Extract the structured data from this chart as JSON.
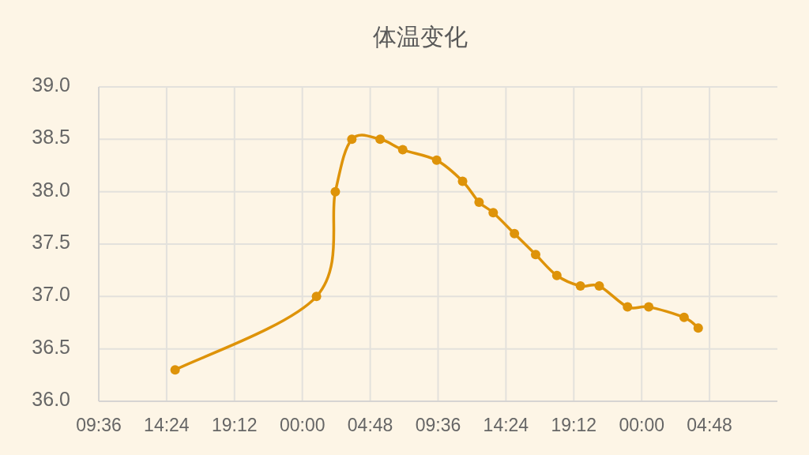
{
  "chart_data": {
    "type": "line",
    "title": "体温变化",
    "x": [
      "--01-01T15:00",
      "--01-02T01:00",
      "--01-02T02:20",
      "--01-02T03:30",
      "--01-02T05:30",
      "--01-02T07:06",
      "--01-02T09:30",
      "--01-02T11:20",
      "--01-02T12:30",
      "--01-02T13:30",
      "--01-02T15:00",
      "--01-02T16:30",
      "--01-02T18:00",
      "--01-02T19:40",
      "--01-02T21:00",
      "--01-02T23:00",
      "--01-03T00:30",
      "--01-03T03:00",
      "--01-03T04:00"
    ],
    "series": [
      {
        "color": "#de9309",
        "values": [
          36.3,
          37.0,
          38.0,
          38.5,
          38.5,
          38.4,
          38.3,
          38.1,
          37.9,
          37.8,
          37.6,
          37.4,
          37.2,
          37.1,
          37.1,
          36.9,
          36.9,
          36.8,
          36.7
        ]
      }
    ],
    "xlim": [
      "--01-01T09:36",
      "--01-03T09:36"
    ],
    "xticks": [
      {
        "value": "--01-01T09:36",
        "label": "09:36"
      },
      {
        "value": "--01-01T14:24",
        "label": "14:24"
      },
      {
        "value": "--01-01T19:12",
        "label": "19:12"
      },
      {
        "value": "--01-02T00:00",
        "label": "00:00"
      },
      {
        "value": "--01-02T04:48",
        "label": "04:48"
      },
      {
        "value": "--01-02T09:36",
        "label": "09:36"
      },
      {
        "value": "--01-02T14:24",
        "label": "14:24"
      },
      {
        "value": "--01-02T19:12",
        "label": "19:12"
      },
      {
        "value": "--01-03T00:00",
        "label": "00:00"
      },
      {
        "value": "--01-03T04:48",
        "label": "04:48"
      }
    ],
    "ylim": [
      36,
      39
    ],
    "yticks": [
      {
        "value": 36,
        "label": "36.0"
      },
      {
        "value": 36.5,
        "label": "36.5"
      },
      {
        "value": 37,
        "label": "37.0"
      },
      {
        "value": 37.5,
        "label": "37.5"
      },
      {
        "value": 38,
        "label": "38.0"
      },
      {
        "value": 38.5,
        "label": "38.5"
      },
      {
        "value": 39,
        "label": "39.0"
      }
    ],
    "grid": true,
    "marker": "circle",
    "line_style": "solid"
  }
}
